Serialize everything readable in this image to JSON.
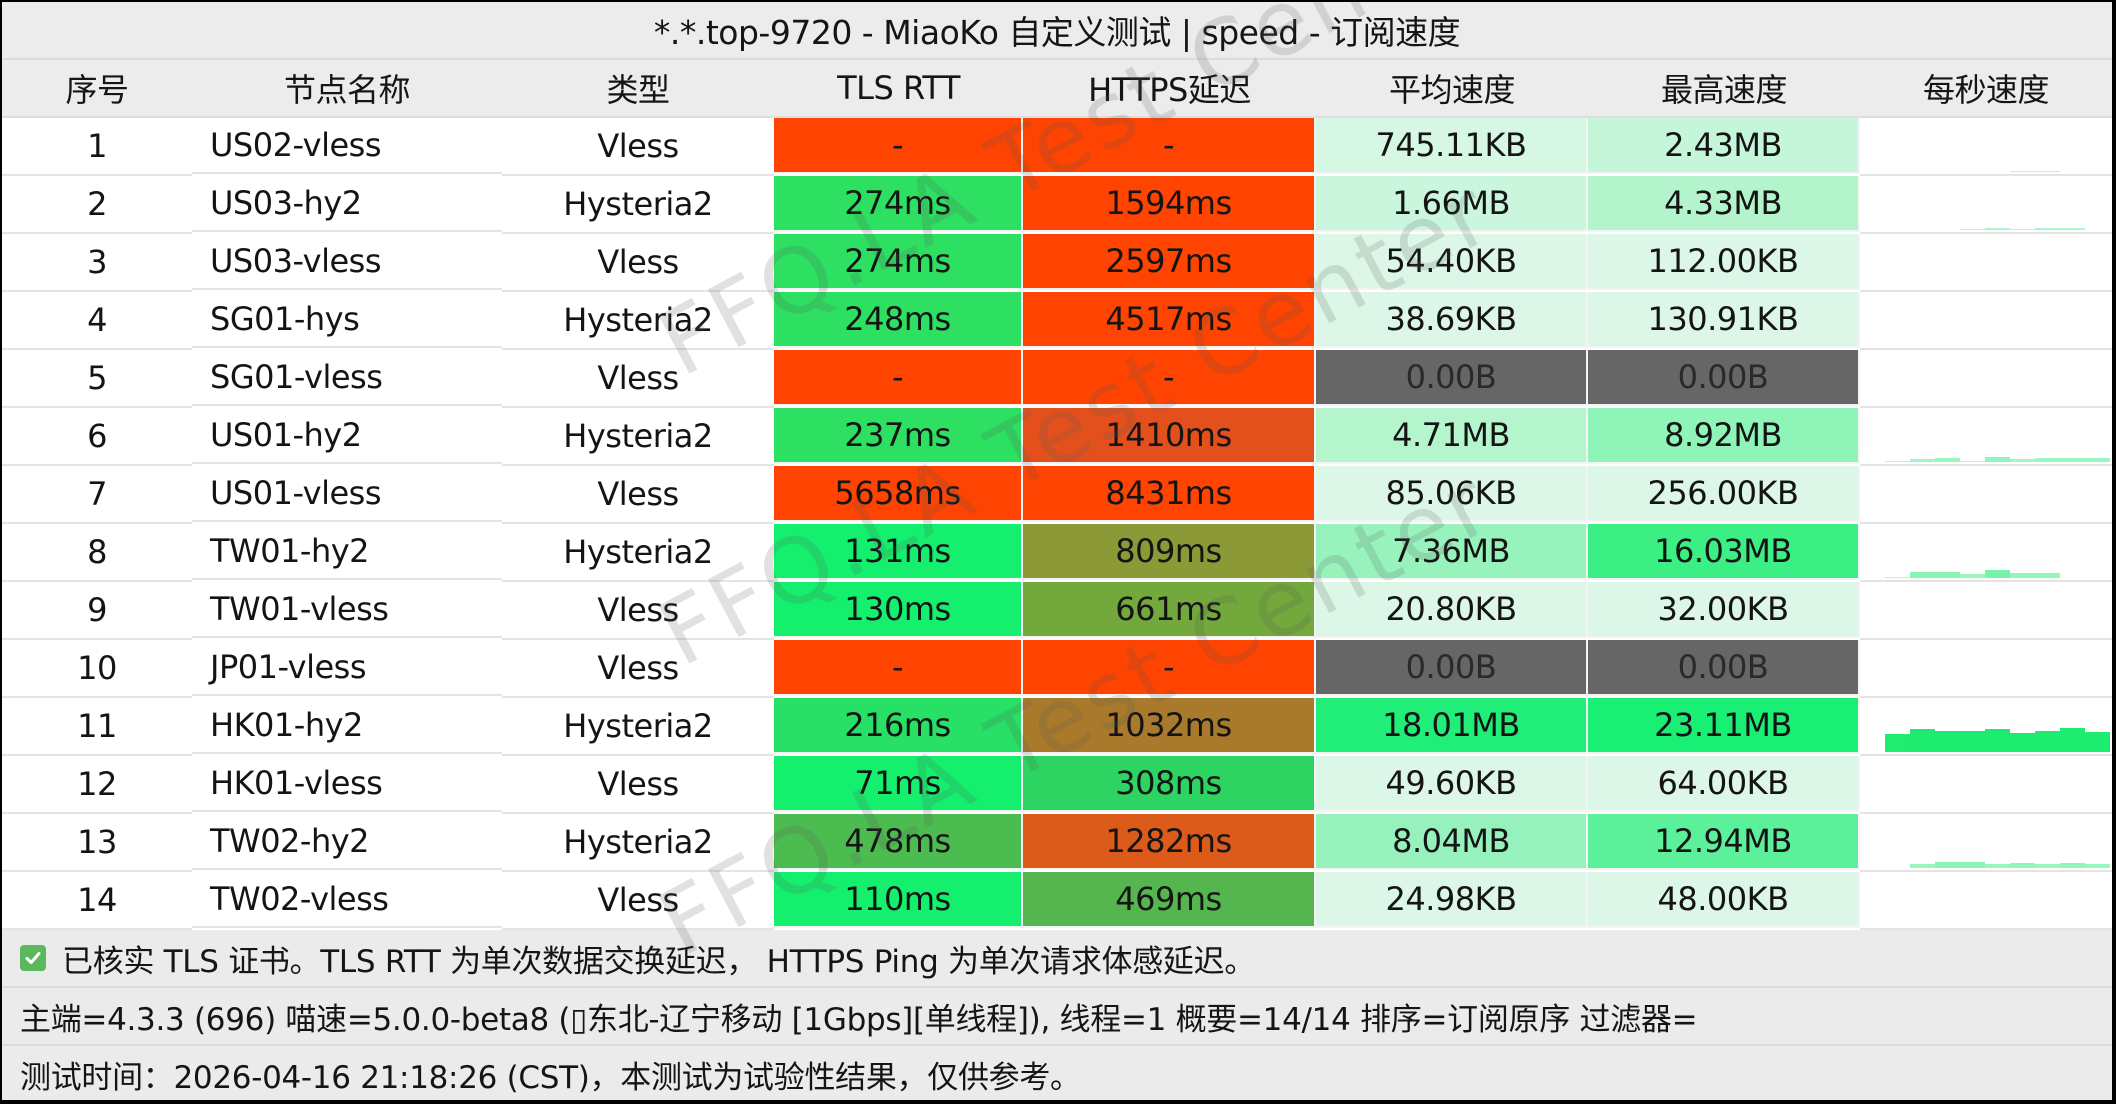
{
  "title": "*.*.top-9720 - MiaoKo 自定义测试 | speed - 订阅速度",
  "columns": {
    "index": "序号",
    "name": "节点名称",
    "type": "类型",
    "tls_rtt": "TLS RTT",
    "https_latency": "HTTPS延迟",
    "avg_speed": "平均速度",
    "max_speed": "最高速度",
    "per_second": "每秒速度"
  },
  "rows": [
    {
      "index": "1",
      "name": "US02-vless",
      "type": "Vless",
      "tls": "-",
      "https": "-",
      "avg": "745.11KB",
      "max": "2.43MB",
      "tls_color": "#fe4400",
      "https_color": "#fe4400",
      "avg_color": "#d5f7e3",
      "max_color": "#c6f6da",
      "spark": [
        0,
        0,
        0,
        0,
        0,
        0,
        1,
        1,
        0,
        0
      ]
    },
    {
      "index": "2",
      "name": "US03-hy2",
      "type": "Hysteria2",
      "tls": "274ms",
      "https": "1594ms",
      "avg": "1.66MB",
      "max": "4.33MB",
      "tls_color": "#2ee061",
      "https_color": "#fe4400",
      "avg_color": "#c9f6dc",
      "max_color": "#b3f4cc",
      "spark": [
        0,
        0,
        0,
        0,
        1,
        2,
        1,
        2,
        2,
        0
      ]
    },
    {
      "index": "3",
      "name": "US03-vless",
      "type": "Vless",
      "tls": "274ms",
      "https": "2597ms",
      "avg": "54.40KB",
      "max": "112.00KB",
      "tls_color": "#2ee061",
      "https_color": "#fe4400",
      "avg_color": "#dcf7e7",
      "max_color": "#dcf7e7",
      "spark": [
        0,
        0,
        0,
        0,
        0,
        0,
        0,
        0,
        0,
        0
      ]
    },
    {
      "index": "4",
      "name": "SG01-hys",
      "type": "Hysteria2",
      "tls": "248ms",
      "https": "4517ms",
      "avg": "38.69KB",
      "max": "130.91KB",
      "tls_color": "#2ee061",
      "https_color": "#fe4400",
      "avg_color": "#dcf7e7",
      "max_color": "#dcf7e7",
      "spark": [
        0,
        0,
        0,
        0,
        0,
        0,
        0,
        0,
        0,
        0
      ]
    },
    {
      "index": "5",
      "name": "SG01-vless",
      "type": "Vless",
      "tls": "-",
      "https": "-",
      "avg": "0.00B",
      "max": "0.00B",
      "tls_color": "#fe4400",
      "https_color": "#fe4400",
      "avg_color": "#666666",
      "max_color": "#666666",
      "spark": [
        0,
        0,
        0,
        0,
        0,
        0,
        0,
        0,
        0,
        0
      ]
    },
    {
      "index": "6",
      "name": "US01-hy2",
      "type": "Hysteria2",
      "tls": "237ms",
      "https": "1410ms",
      "avg": "4.71MB",
      "max": "8.92MB",
      "tls_color": "#2ee061",
      "https_color": "#e4501c",
      "avg_color": "#b4f5cd",
      "max_color": "#8ef4b8",
      "spark": [
        0,
        1,
        3,
        4,
        1,
        5,
        3,
        4,
        4,
        4
      ]
    },
    {
      "index": "7",
      "name": "US01-vless",
      "type": "Vless",
      "tls": "5658ms",
      "https": "8431ms",
      "avg": "85.06KB",
      "max": "256.00KB",
      "tls_color": "#fe4400",
      "https_color": "#fe4400",
      "avg_color": "#dcf7e7",
      "max_color": "#dcf7e7",
      "spark": [
        0,
        0,
        0,
        0,
        0,
        0,
        0,
        0,
        0,
        0
      ]
    },
    {
      "index": "8",
      "name": "TW01-hy2",
      "type": "Hysteria2",
      "tls": "131ms",
      "https": "809ms",
      "avg": "7.36MB",
      "max": "16.03MB",
      "tls_color": "#14f06e",
      "https_color": "#8b9a36",
      "avg_color": "#97f2bc",
      "max_color": "#3cef84",
      "spark": [
        0,
        1,
        6,
        6,
        4,
        8,
        5,
        5,
        0,
        0
      ]
    },
    {
      "index": "9",
      "name": "TW01-vless",
      "type": "Vless",
      "tls": "130ms",
      "https": "661ms",
      "avg": "20.80KB",
      "max": "32.00KB",
      "tls_color": "#14f06e",
      "https_color": "#72a83c",
      "avg_color": "#dcf7e7",
      "max_color": "#dcf7e7",
      "spark": [
        0,
        0,
        0,
        0,
        0,
        0,
        0,
        0,
        0,
        0
      ]
    },
    {
      "index": "10",
      "name": "JP01-vless",
      "type": "Vless",
      "tls": "-",
      "https": "-",
      "avg": "0.00B",
      "max": "0.00B",
      "tls_color": "#fe4400",
      "https_color": "#fe4400",
      "avg_color": "#666666",
      "max_color": "#666666",
      "spark": [
        0,
        0,
        0,
        0,
        0,
        0,
        0,
        0,
        0,
        0
      ]
    },
    {
      "index": "11",
      "name": "HK01-hy2",
      "type": "Hysteria2",
      "tls": "216ms",
      "https": "1032ms",
      "avg": "18.01MB",
      "max": "23.11MB",
      "tls_color": "#27e065",
      "https_color": "#a97a2b",
      "avg_color": "#21ee78",
      "max_color": "#18ef74",
      "spark": [
        0,
        18,
        23,
        21,
        21,
        23,
        19,
        21,
        24,
        20
      ]
    },
    {
      "index": "12",
      "name": "HK01-vless",
      "type": "Vless",
      "tls": "71ms",
      "https": "308ms",
      "avg": "49.60KB",
      "max": "64.00KB",
      "tls_color": "#14f06e",
      "https_color": "#2dd461",
      "avg_color": "#dcf7e7",
      "max_color": "#dcf7e7",
      "spark": [
        0,
        0,
        0,
        0,
        0,
        0,
        0,
        0,
        0,
        0
      ]
    },
    {
      "index": "13",
      "name": "TW02-hy2",
      "type": "Hysteria2",
      "tls": "478ms",
      "https": "1282ms",
      "avg": "8.04MB",
      "max": "12.94MB",
      "tls_color": "#4cbb50",
      "https_color": "#dc5a1a",
      "avg_color": "#97f1bc",
      "max_color": "#5df09a",
      "spark": [
        0,
        0,
        4,
        6,
        6,
        4,
        5,
        4,
        5,
        4
      ]
    },
    {
      "index": "14",
      "name": "TW02-vless",
      "type": "Vless",
      "tls": "110ms",
      "https": "469ms",
      "avg": "24.98KB",
      "max": "48.00KB",
      "tls_color": "#14f06e",
      "https_color": "#55b54e",
      "avg_color": "#dcf7e7",
      "max_color": "#dcf7e7",
      "spark": [
        0,
        0,
        0,
        0,
        0,
        0,
        0,
        0,
        0,
        0
      ]
    }
  ],
  "footer": {
    "tls_note_icon": "checkbox-checked-icon",
    "tls_note": "已核实 TLS 证书。TLS RTT 为单次数据交换延迟， HTTPS Ping 为单次请求体感延迟。",
    "info": "主端=4.3.3 (696) 喵速=5.0.0-beta8 (▯东北-辽宁移动 [1Gbps][单线程]), 线程=1 概要=14/14 排序=订阅原序 过滤器=",
    "test_time": "测试时间：2026-04-16 21:18:26 (CST)，本测试为试验性结果，仅供参考。"
  },
  "watermark": "FFQ.LA Test Center",
  "colors": {
    "fail_red": "#fe4400",
    "fast_green": "#14f06e",
    "zero_gray": "#666666",
    "spark_green": "#3ef08a",
    "header_bg": "#ececec"
  }
}
